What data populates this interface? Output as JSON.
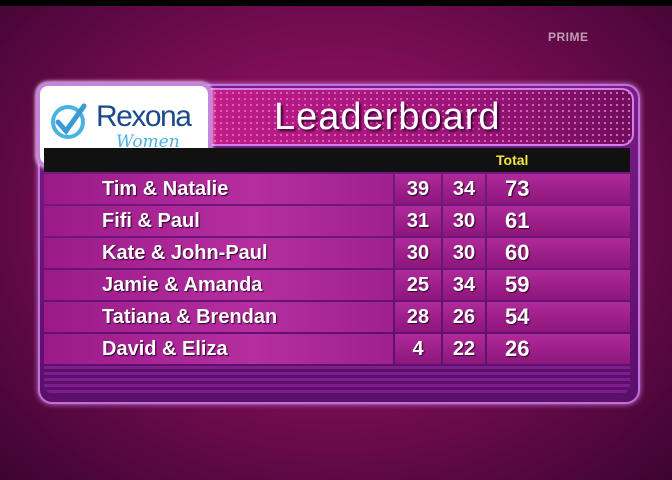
{
  "channel_logo": "PRIME",
  "sponsor": {
    "brand": "Rexona",
    "sub": "Women"
  },
  "title": "Leaderboard",
  "header": {
    "total_label": "Total"
  },
  "colors": {
    "accent": "#b02a9a",
    "total_header": "#f2e640",
    "logo_blue": "#1b4a8c"
  },
  "rows": [
    {
      "name": "Tim & Natalie",
      "score1": "39",
      "score2": "34",
      "total": "73"
    },
    {
      "name": "Fifi & Paul",
      "score1": "31",
      "score2": "30",
      "total": "61"
    },
    {
      "name": "Kate & John-Paul",
      "score1": "30",
      "score2": "30",
      "total": "60"
    },
    {
      "name": "Jamie & Amanda",
      "score1": "25",
      "score2": "34",
      "total": "59"
    },
    {
      "name": "Tatiana & Brendan",
      "score1": "28",
      "score2": "26",
      "total": "54"
    },
    {
      "name": "David & Eliza",
      "score1": "4",
      "score2": "22",
      "total": "26"
    }
  ]
}
